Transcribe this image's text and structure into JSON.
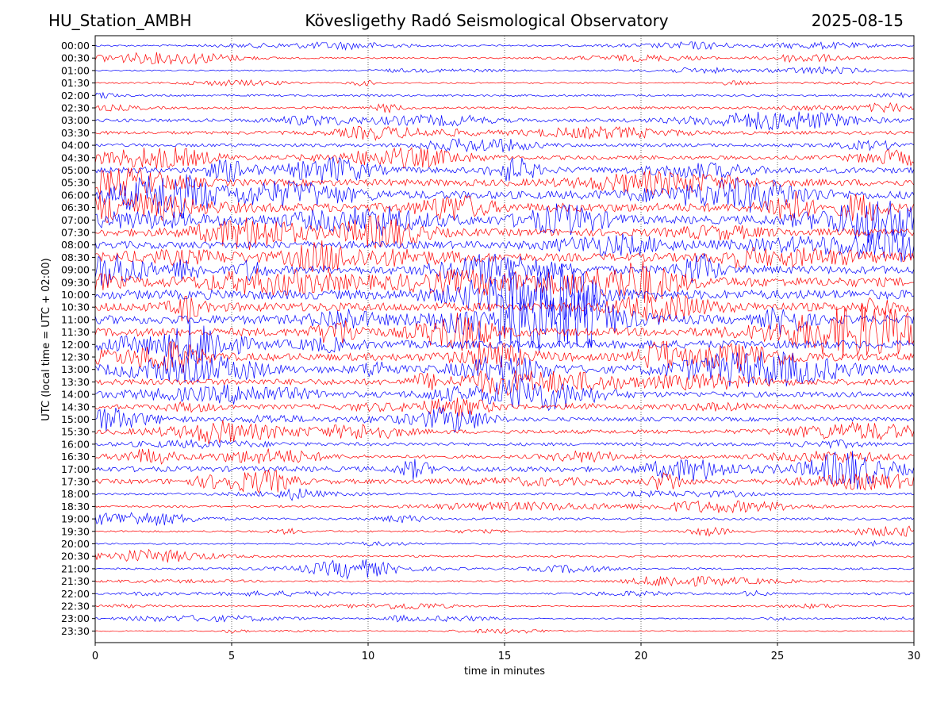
{
  "header": {
    "station": "HU_Station_AMBH",
    "title": "Kövesligethy Radó Seismological Observatory",
    "date": "2025-08-15"
  },
  "chart_data": {
    "type": "line",
    "subtype": "helicorder",
    "xlabel": "time in minutes",
    "ylabel": "UTC (local time = UTC + 02:00)",
    "xlim": [
      0,
      30
    ],
    "xticks": [
      0,
      5,
      10,
      15,
      20,
      25,
      30
    ],
    "vertical_grid": true,
    "grid_style": "dotted",
    "row_labels": [
      "00:00",
      "00:30",
      "01:00",
      "01:30",
      "02:00",
      "02:30",
      "03:00",
      "03:30",
      "04:00",
      "04:30",
      "05:00",
      "05:30",
      "06:00",
      "06:30",
      "07:00",
      "07:30",
      "08:00",
      "08:30",
      "09:00",
      "09:30",
      "10:00",
      "10:30",
      "11:00",
      "11:30",
      "12:00",
      "12:30",
      "13:00",
      "13:30",
      "14:00",
      "14:30",
      "15:00",
      "15:30",
      "16:00",
      "16:30",
      "17:00",
      "17:30",
      "18:00",
      "18:30",
      "19:00",
      "19:30",
      "20:00",
      "20:30",
      "21:00",
      "21:30",
      "22:00",
      "22:30",
      "23:00",
      "23:30"
    ],
    "row_colors": [
      "#0000ff",
      "#ff0000"
    ],
    "row_amplitude": [
      0.25,
      0.25,
      0.2,
      0.2,
      0.3,
      0.35,
      0.5,
      0.5,
      0.5,
      0.6,
      0.9,
      1.0,
      1.2,
      1.3,
      1.2,
      1.1,
      1.1,
      1.2,
      1.2,
      1.4,
      1.4,
      1.3,
      1.3,
      1.2,
      1.2,
      1.1,
      1.0,
      0.9,
      0.8,
      0.7,
      0.6,
      0.6,
      0.5,
      0.5,
      0.8,
      0.7,
      0.3,
      0.3,
      0.35,
      0.3,
      0.2,
      0.3,
      0.3,
      0.25,
      0.2,
      0.15,
      0.2,
      0.15
    ]
  }
}
